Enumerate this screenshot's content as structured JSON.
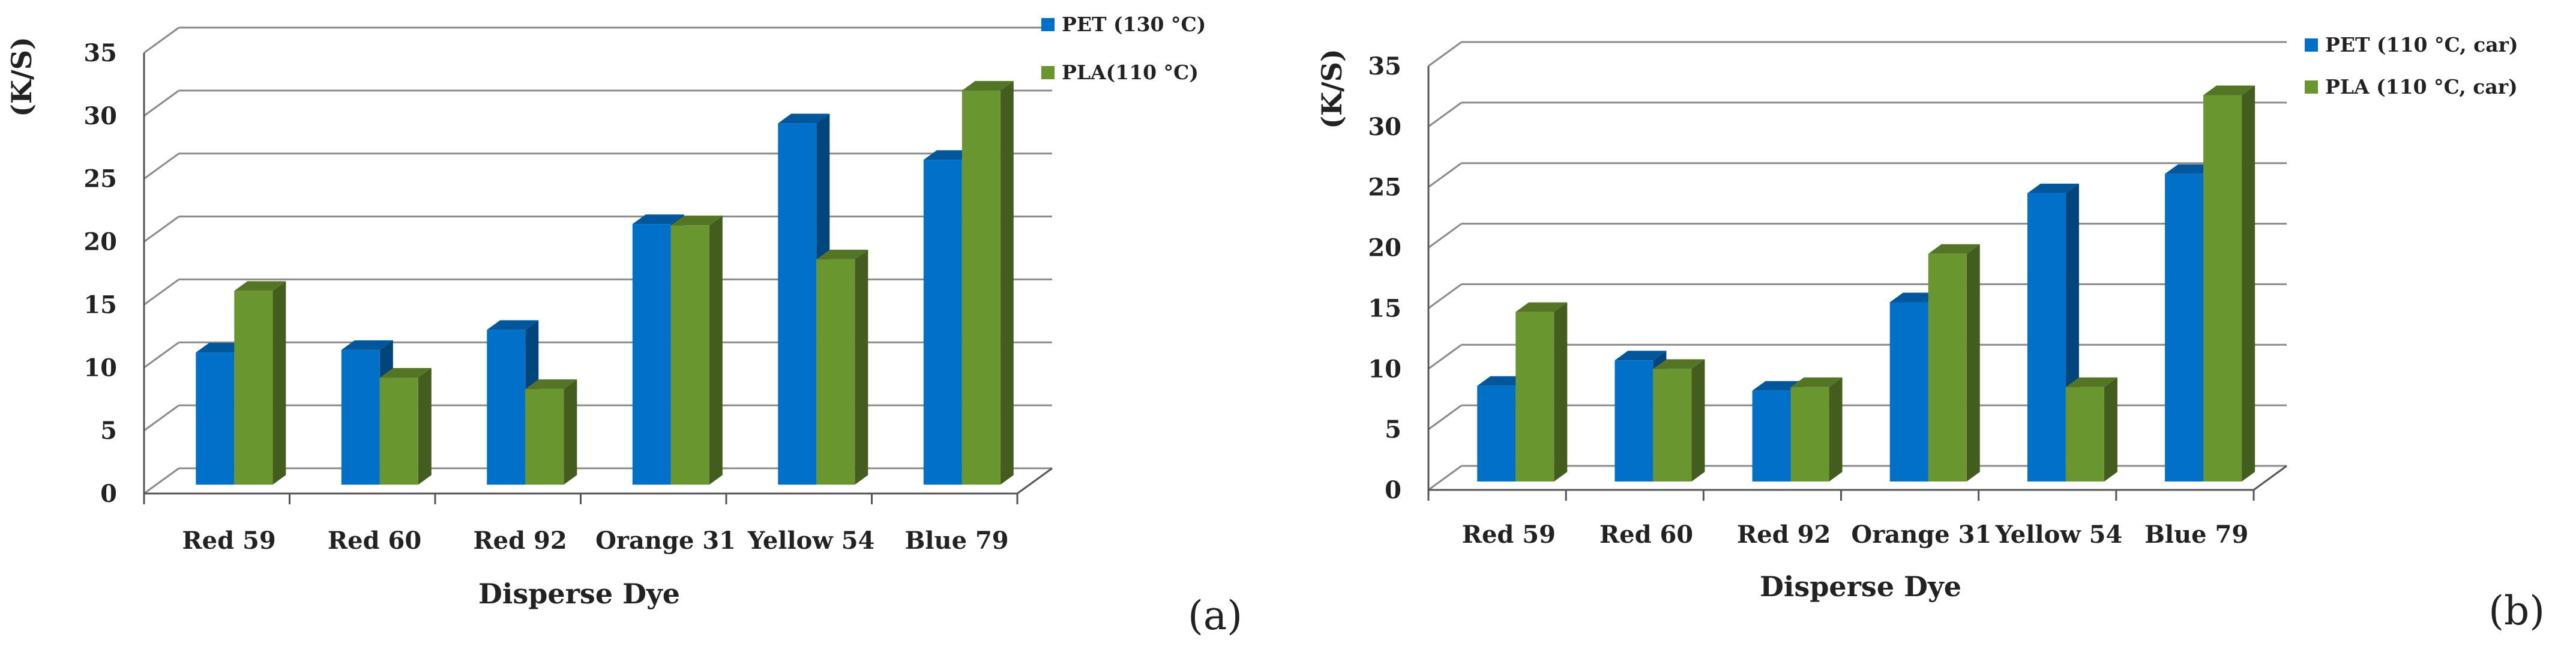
{
  "chart_data": [
    {
      "type": "bar",
      "panel_label": "(a)",
      "title": "",
      "xlabel": "Disperse Dye",
      "ylabel": "(K/S)",
      "ylim": [
        0,
        35
      ],
      "yticks": [
        0,
        5,
        10,
        15,
        20,
        25,
        30,
        35
      ],
      "legend_position": "top-right",
      "categories": [
        "Red 59",
        "Red 60",
        "Red 92",
        "Orange 31",
        "Yellow 54",
        "Blue 79"
      ],
      "series": [
        {
          "name": "PET (130 °C)",
          "color": "#0070c8",
          "values": [
            10.5,
            10.7,
            12.3,
            20.7,
            28.7,
            25.8
          ]
        },
        {
          "name": "PLA(110 °C)",
          "color": "#6a962f",
          "values": [
            15.4,
            8.5,
            7.6,
            20.6,
            17.9,
            31.3
          ]
        }
      ]
    },
    {
      "type": "bar",
      "panel_label": "(b)",
      "title": "",
      "xlabel": "Disperse Dye",
      "ylabel": "(K/S)",
      "ylim": [
        0,
        35
      ],
      "yticks": [
        0,
        5,
        10,
        15,
        20,
        25,
        30,
        35
      ],
      "legend_position": "top-right",
      "categories": [
        "Red 59",
        "Red 60",
        "Red 92",
        "Orange 31",
        "Yellow 54",
        "Blue 79"
      ],
      "series": [
        {
          "name": "PET (110 °C, car)",
          "color": "#0070c8",
          "values": [
            7.9,
            10.0,
            7.5,
            14.8,
            23.8,
            25.4
          ]
        },
        {
          "name": "PLA (110 °C, car)",
          "color": "#6a962f",
          "values": [
            14.0,
            9.3,
            7.8,
            18.8,
            7.8,
            31.9
          ]
        }
      ]
    }
  ]
}
